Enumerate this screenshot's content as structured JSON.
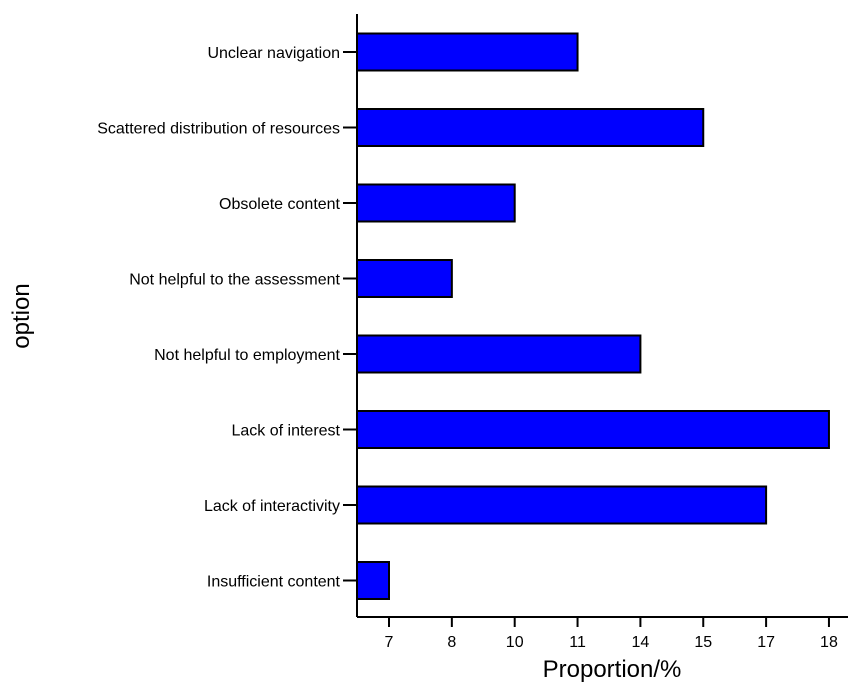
{
  "chart_data": {
    "type": "bar",
    "orientation": "horizontal",
    "categories": [
      "Unclear navigation",
      "Scattered distribution of resources",
      "Obsolete content",
      "Not helpful to the assessment",
      "Not helpful to employment",
      "Lack of interest",
      "Lack of interactivity",
      "Insufficient content"
    ],
    "values": [
      11,
      15,
      10,
      8,
      14,
      18,
      17,
      7
    ],
    "x_ticks": [
      "7",
      "8",
      "10",
      "11",
      "14",
      "15",
      "17",
      "18"
    ],
    "xlabel": "Proportion/%",
    "ylabel": "option",
    "bar_color": "#0000ff",
    "bar_edge_color": "#000000",
    "grid": false,
    "legend": "none"
  }
}
